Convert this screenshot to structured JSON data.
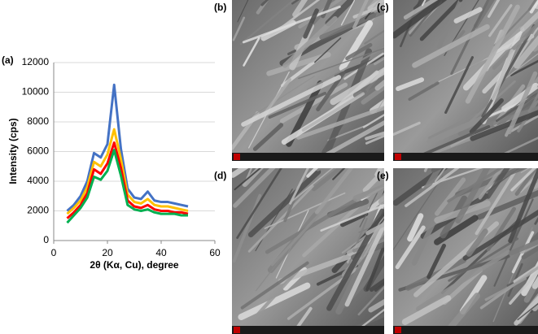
{
  "chart_data": {
    "type": "line",
    "panel_label": "(a)",
    "x_label": "2θ (Kα, Cu), degree",
    "y_label": "Intensity (cps)",
    "x": [
      5,
      7.5,
      10,
      12.5,
      15,
      17.5,
      20,
      22.5,
      25,
      27.5,
      30,
      32.5,
      35,
      37.5,
      40,
      42.5,
      45,
      47.5,
      50
    ],
    "series": [
      {
        "color": "#4472c4",
        "values": [
          2000,
          2400,
          3000,
          4000,
          5900,
          5600,
          6500,
          10500,
          6200,
          3500,
          2900,
          2800,
          3300,
          2700,
          2600,
          2600,
          2500,
          2400,
          2300
        ]
      },
      {
        "color": "#ffc000",
        "values": [
          1800,
          2200,
          2700,
          3600,
          5300,
          5000,
          5800,
          7500,
          5500,
          3100,
          2600,
          2500,
          2800,
          2400,
          2300,
          2300,
          2200,
          2100,
          2000
        ]
      },
      {
        "color": "#ff0000",
        "values": [
          1500,
          1900,
          2400,
          3200,
          4800,
          4500,
          5200,
          6600,
          4900,
          2700,
          2300,
          2200,
          2400,
          2100,
          2000,
          2000,
          1900,
          1900,
          1800
        ]
      },
      {
        "color": "#00b050",
        "values": [
          1200,
          1700,
          2200,
          2900,
          4300,
          4100,
          4700,
          6100,
          4400,
          2400,
          2100,
          2000,
          2100,
          1900,
          1800,
          1800,
          1800,
          1700,
          1700
        ]
      }
    ],
    "xlim": [
      0,
      60
    ],
    "xticks": [
      0,
      20,
      40,
      60
    ],
    "ylim": [
      0,
      12000
    ],
    "yticks": [
      0,
      2000,
      4000,
      6000,
      8000,
      10000,
      12000
    ],
    "grid": true
  },
  "images": [
    {
      "label": "(b)"
    },
    {
      "label": "(c)"
    },
    {
      "label": "(d)"
    },
    {
      "label": "(e)"
    }
  ]
}
